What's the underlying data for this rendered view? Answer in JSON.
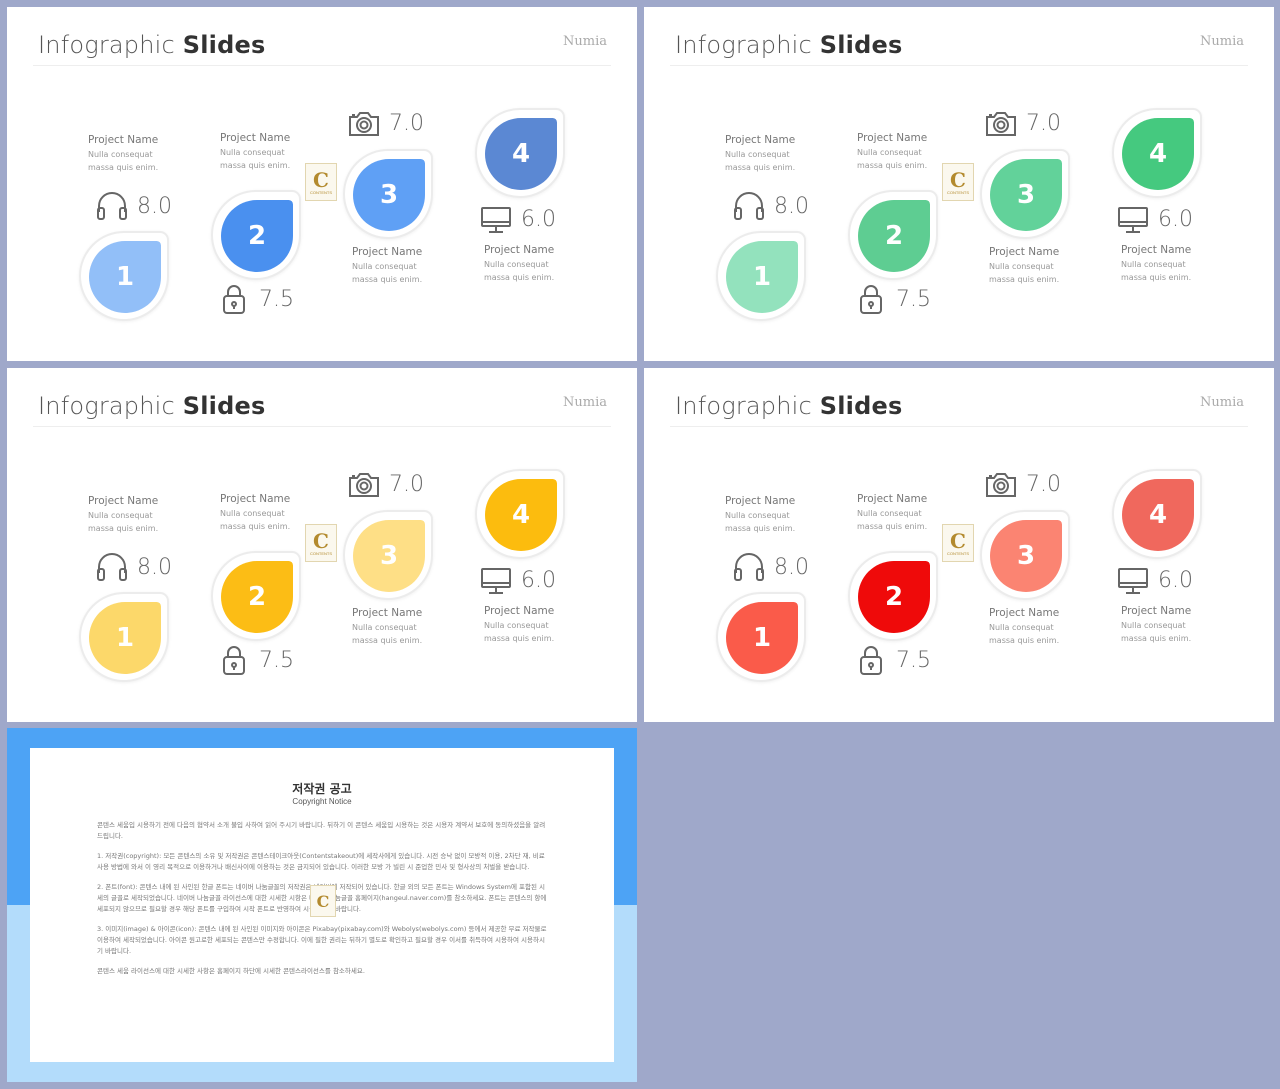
{
  "slides": [
    {
      "title_light": "Infographic ",
      "title_bold": "Slides",
      "brand": "Numia",
      "colors": [
        "#92bff8",
        "#4a90ef",
        "#5fa0f5",
        "#5b88d3"
      ],
      "drops": [
        "1",
        "2",
        "3",
        "4"
      ],
      "projects": [
        {
          "name": "Project Name",
          "line1": "Nulla consequat",
          "line2": "massa quis enim."
        },
        {
          "name": "Project Name",
          "line1": "Nulla consequat",
          "line2": "massa quis enim."
        },
        {
          "name": "Project Name",
          "line1": "Nulla consequat",
          "line2": "massa quis enim."
        },
        {
          "name": "Project Name",
          "line1": "Nulla consequat",
          "line2": "massa quis enim."
        }
      ],
      "metrics": [
        {
          "icon": "headphones-icon",
          "value": "8.0"
        },
        {
          "icon": "lock-icon",
          "value": "7.5"
        },
        {
          "icon": "camera-icon",
          "value": "7.0"
        },
        {
          "icon": "monitor-icon",
          "value": "6.0"
        }
      ]
    },
    {
      "title_light": "Infographic ",
      "title_bold": "Slides",
      "brand": "Numia",
      "colors": [
        "#93e2bd",
        "#5ecd92",
        "#62d29a",
        "#45c97f"
      ],
      "drops": [
        "1",
        "2",
        "3",
        "4"
      ],
      "projects": [
        {
          "name": "Project Name",
          "line1": "Nulla consequat",
          "line2": "massa quis enim."
        },
        {
          "name": "Project Name",
          "line1": "Nulla consequat",
          "line2": "massa quis enim."
        },
        {
          "name": "Project Name",
          "line1": "Nulla consequat",
          "line2": "massa quis enim."
        },
        {
          "name": "Project Name",
          "line1": "Nulla consequat",
          "line2": "massa quis enim."
        }
      ],
      "metrics": [
        {
          "icon": "headphones-icon",
          "value": "8.0"
        },
        {
          "icon": "lock-icon",
          "value": "7.5"
        },
        {
          "icon": "camera-icon",
          "value": "7.0"
        },
        {
          "icon": "monitor-icon",
          "value": "6.0"
        }
      ]
    },
    {
      "title_light": "Infographic ",
      "title_bold": "Slides",
      "brand": "Numia",
      "colors": [
        "#fcd86a",
        "#fcbd15",
        "#fedf86",
        "#fcbc0e"
      ],
      "drops": [
        "1",
        "2",
        "3",
        "4"
      ],
      "projects": [
        {
          "name": "Project Name",
          "line1": "Nulla consequat",
          "line2": "massa quis enim."
        },
        {
          "name": "Project Name",
          "line1": "Nulla consequat",
          "line2": "massa quis enim."
        },
        {
          "name": "Project Name",
          "line1": "Nulla consequat",
          "line2": "massa quis enim."
        },
        {
          "name": "Project Name",
          "line1": "Nulla consequat",
          "line2": "massa quis enim."
        }
      ],
      "metrics": [
        {
          "icon": "headphones-icon",
          "value": "8.0"
        },
        {
          "icon": "lock-icon",
          "value": "7.5"
        },
        {
          "icon": "camera-icon",
          "value": "7.0"
        },
        {
          "icon": "monitor-icon",
          "value": "6.0"
        }
      ]
    },
    {
      "title_light": "Infographic ",
      "title_bold": "Slides",
      "brand": "Numia",
      "colors": [
        "#fa5b4a",
        "#ef0a0a",
        "#fb8472",
        "#f0685d"
      ],
      "drops": [
        "1",
        "2",
        "3",
        "4"
      ],
      "projects": [
        {
          "name": "Project Name",
          "line1": "Nulla consequat",
          "line2": "massa quis enim."
        },
        {
          "name": "Project Name",
          "line1": "Nulla consequat",
          "line2": "massa quis enim."
        },
        {
          "name": "Project Name",
          "line1": "Nulla consequat",
          "line2": "massa quis enim."
        },
        {
          "name": "Project Name",
          "line1": "Nulla consequat",
          "line2": "massa quis enim."
        }
      ],
      "metrics": [
        {
          "icon": "headphones-icon",
          "value": "8.0"
        },
        {
          "icon": "lock-icon",
          "value": "7.5"
        },
        {
          "icon": "camera-icon",
          "value": "7.0"
        },
        {
          "icon": "monitor-icon",
          "value": "6.0"
        }
      ]
    }
  ],
  "logo": {
    "letter": "C",
    "text": "CONTENTS"
  },
  "copyright": {
    "title": "저작권 공고",
    "subtitle": "Copyright Notice",
    "paragraphs": [
      "콘텐스 세움입 시용하기 전에 다음의 협약서 소개 불입 사하여 읽어 주시기 바랍니다. 뒤하기 이 콘텐스 세움입 시용하는 것은 시용자 계약서 보호에 동의하셨음을 알려드립니다.",
      "1. 저작권(copyright): 모든 콘텐스의 소유 및 저작권은 콘텐스테이크아웃(Contentstakeout)에 세작사에게 있습니다. 시전 승낙 없이 모방적 이용, 2차단 재, 비료 사용 방법에 와서 이 영리 목적으로 이용하거나 배신사이에 이용하는 것은 금지되어 있습니다. 이러한 모방 가 빌린 시 준업한 민사 및 형사상의 처벌을 받습니다.",
      "2. 폰트(font): 콘텐스 내에 된 사인된 한글 폰트는 네이버 나눔글꼴의 저작권은 네이버에 저작되어 있습니다. 한글 외의 모든 폰트는 Windows System에 포함된 시세의 글꼴로 세작되었습니다. 네이버 나눔글꼴 라이선스에 대한 시세한 시항은 네이버 나눔글꼴 홈페이지(hangeul.naver.com)를 참소하세요. 폰트는 콘텐스의 항에 세포되지 않으므로 필요할 경우 해당 폰트를 구입하여 시작 폰트로 반영하여 시용하시기 바랍니다.",
      "3. 이미지(image) & 아이콘(icon): 콘텐스 내에 된 사인된 이미지와 아이콘은 Pixabay(pixabay.com)와 Webolys(webolys.com) 등에서 제공한 무료 저작물로 이용하여 세작되었습니다. 아이콘 원고로한 세포되는 콘텐스만 수정합니다. 이에 필한 권리는 뒤하기 별도로 확인하고 필요할 경우 이서를 취득하여 시용하여 시용하시기 바랍니다.",
      "콘텐스 세움 라이선스에 대한 시세한 사항은 홈페이지 하단에 시세한 콘텐스라이선스를 참소하세요."
    ]
  }
}
